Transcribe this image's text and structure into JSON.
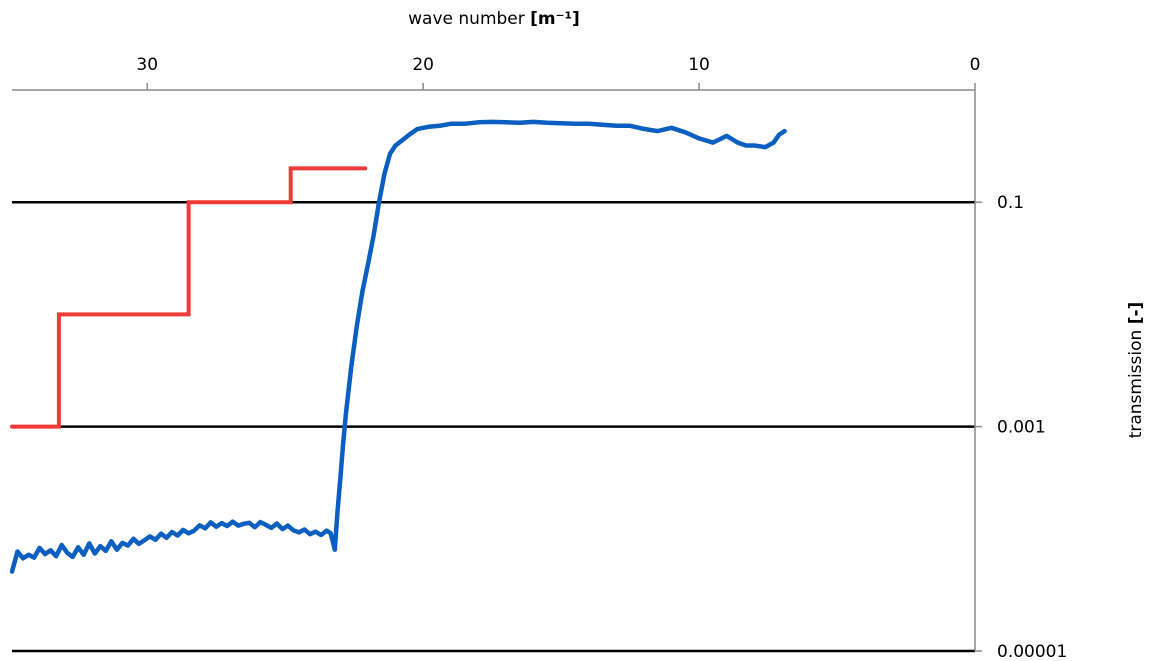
{
  "chart_data": {
    "type": "line",
    "title": "",
    "xlabel": "wave number",
    "xlabel_unit": "[m⁻¹]",
    "ylabel": "transmission",
    "ylabel_unit": "[-]",
    "x_axis_position": "top",
    "y_axis_position": "right",
    "x_reversed": true,
    "xlim": [
      34.9,
      0
    ],
    "x_ticks": [
      30,
      20,
      10,
      0
    ],
    "x_tick_labels": [
      "30",
      "20",
      "10",
      "0"
    ],
    "y_scale": "log",
    "ylim": [
      1e-05,
      1.0
    ],
    "y_ticks": [
      0.1,
      0.001,
      1e-05
    ],
    "y_tick_labels": [
      "0.1",
      "0.001",
      "0.00001"
    ],
    "grid": "horizontal gridlines at 0.1, 0.001 and 0.00001",
    "legend": "none",
    "series": [
      {
        "color": "#ef3b39",
        "step": true,
        "x": [
          34.9,
          33.2,
          33.2,
          28.5,
          28.5,
          24.8,
          24.8,
          22.1
        ],
        "y": [
          0.001,
          0.001,
          0.01,
          0.01,
          0.1,
          0.1,
          0.2,
          0.2
        ]
      },
      {
        "color": "#0a5fc0",
        "x": [
          34.9,
          34.7,
          34.5,
          34.3,
          34.1,
          33.9,
          33.7,
          33.5,
          33.3,
          33.1,
          32.9,
          32.7,
          32.5,
          32.3,
          32.1,
          31.9,
          31.7,
          31.5,
          31.3,
          31.1,
          30.9,
          30.7,
          30.5,
          30.3,
          30.1,
          29.9,
          29.7,
          29.5,
          29.3,
          29.1,
          28.9,
          28.7,
          28.5,
          28.3,
          28.1,
          27.9,
          27.7,
          27.5,
          27.3,
          27.1,
          26.9,
          26.7,
          26.5,
          26.3,
          26.1,
          25.9,
          25.7,
          25.5,
          25.3,
          25.1,
          24.9,
          24.7,
          24.5,
          24.3,
          24.1,
          23.9,
          23.7,
          23.5,
          23.35,
          23.2,
          23.1,
          23.0,
          22.9,
          22.8,
          22.6,
          22.4,
          22.2,
          22.0,
          21.8,
          21.6,
          21.4,
          21.2,
          21.0,
          20.8,
          20.5,
          20.2,
          19.8,
          19.4,
          19.0,
          18.5,
          18.0,
          17.5,
          17.0,
          16.5,
          16.0,
          15.5,
          15.0,
          14.5,
          14.0,
          13.5,
          13.0,
          12.5,
          12.0,
          11.5,
          11.0,
          10.5,
          10.0,
          9.5,
          9.0,
          8.6,
          8.3,
          8.0,
          7.6,
          7.3,
          7.1,
          6.9
        ],
        "y": [
          5.1e-05,
          7.7e-05,
          6.7e-05,
          7.2e-05,
          6.8e-05,
          8.3e-05,
          7.3e-05,
          7.9e-05,
          7e-05,
          8.8e-05,
          7.5e-05,
          6.9e-05,
          8.4e-05,
          7.2e-05,
          9.1e-05,
          7.4e-05,
          8.6e-05,
          7.8e-05,
          9.5e-05,
          8e-05,
          9.2e-05,
          8.7e-05,
          0.0001,
          9e-05,
          9.7e-05,
          0.000105,
          9.8e-05,
          0.000111,
          0.000102,
          0.000115,
          0.000107,
          0.00012,
          0.000112,
          0.000118,
          0.000132,
          0.000124,
          0.00014,
          0.000128,
          0.000138,
          0.00013,
          0.000142,
          0.000131,
          0.000136,
          0.000139,
          0.000127,
          0.000141,
          0.000133,
          0.000125,
          0.000137,
          0.000122,
          0.000131,
          0.000119,
          0.000114,
          0.000121,
          0.00011,
          0.000116,
          0.000108,
          0.000118,
          0.000112,
          8e-05,
          0.00018,
          0.00035,
          0.0007,
          0.0013,
          0.0035,
          0.008,
          0.016,
          0.028,
          0.05,
          0.1,
          0.18,
          0.27,
          0.32,
          0.35,
          0.4,
          0.45,
          0.47,
          0.48,
          0.5,
          0.5,
          0.515,
          0.52,
          0.515,
          0.51,
          0.52,
          0.51,
          0.505,
          0.5,
          0.5,
          0.49,
          0.48,
          0.48,
          0.45,
          0.43,
          0.46,
          0.42,
          0.37,
          0.34,
          0.39,
          0.34,
          0.32,
          0.32,
          0.31,
          0.34,
          0.4,
          0.43
        ]
      }
    ]
  }
}
